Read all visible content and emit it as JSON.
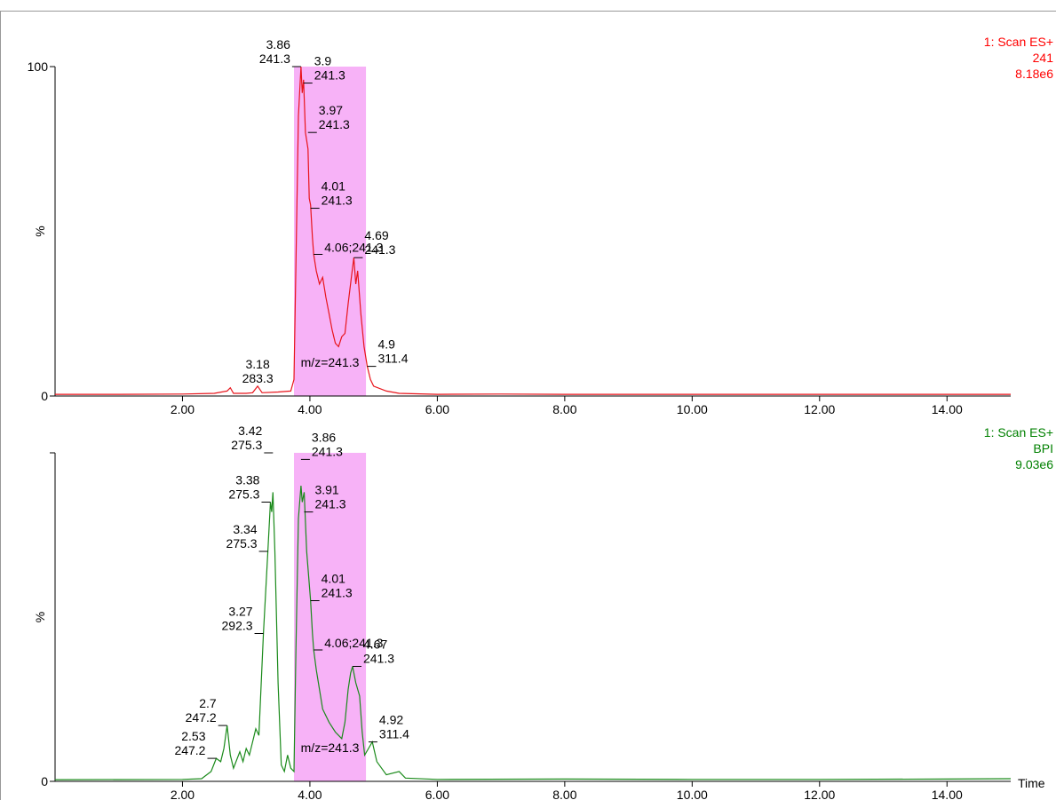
{
  "chart_data": [
    {
      "type": "line",
      "header": [
        "1: Scan ES+",
        "241",
        "8.18e6"
      ],
      "header_color": "#ff0000",
      "ylabel": "%",
      "xlim": [
        0,
        15
      ],
      "ylim": [
        0,
        100
      ],
      "xticks": [
        {
          "value": 2,
          "label": "2.00"
        },
        {
          "value": 4,
          "label": "4.00"
        },
        {
          "value": 6,
          "label": "6.00"
        },
        {
          "value": 8,
          "label": "8.00"
        },
        {
          "value": 10,
          "label": "10.00"
        },
        {
          "value": 12,
          "label": "12.00"
        },
        {
          "value": 14,
          "label": "14.00"
        }
      ],
      "yticks": [
        0,
        100
      ],
      "shaded_range": [
        3.75,
        4.88
      ],
      "shaded_color": "#f7b2f7",
      "shaded_label": "m/z=241.3",
      "x": [
        0,
        1,
        2,
        2.5,
        2.7,
        2.75,
        2.8,
        3.0,
        3.1,
        3.18,
        3.25,
        3.5,
        3.7,
        3.75,
        3.78,
        3.82,
        3.86,
        3.88,
        3.9,
        3.93,
        3.97,
        3.99,
        4.01,
        4.04,
        4.06,
        4.1,
        4.15,
        4.2,
        4.25,
        4.3,
        4.35,
        4.4,
        4.45,
        4.5,
        4.55,
        4.6,
        4.65,
        4.69,
        4.72,
        4.75,
        4.8,
        4.85,
        4.9,
        4.95,
        5.0,
        5.2,
        5.4,
        6,
        7,
        8,
        10,
        12,
        14,
        15
      ],
      "series": [
        {
          "name": "241",
          "color": "#e8141b",
          "values": [
            0.5,
            0.5,
            0.6,
            0.8,
            1.5,
            2.5,
            0.8,
            0.8,
            1,
            3,
            1,
            1.2,
            1.5,
            5,
            40,
            85,
            100,
            92,
            96,
            80,
            75,
            60,
            58,
            48,
            43,
            38,
            34,
            36,
            30,
            25,
            20,
            16,
            15,
            18,
            19,
            28,
            36,
            42,
            34,
            38,
            25,
            15,
            9,
            5,
            3,
            1.5,
            0.8,
            0.5,
            0.6,
            0.5,
            0.5,
            0.5,
            0.5,
            0.5
          ]
        }
      ],
      "annotations": [
        {
          "time": 3.86,
          "mz": 241.3,
          "y": 100,
          "anchor": "left"
        },
        {
          "time": 3.9,
          "mz": 241.3,
          "y": 95,
          "anchor": "right"
        },
        {
          "time": 3.97,
          "mz": 241.3,
          "y": 80,
          "anchor": "right"
        },
        {
          "time": 4.01,
          "mz": 241.3,
          "y": 57,
          "anchor": "right"
        },
        {
          "label": "4.06;241.3",
          "time": 4.06,
          "y": 43,
          "anchor": "right"
        },
        {
          "time": 4.69,
          "mz": 241.3,
          "y": 42,
          "anchor": "right"
        },
        {
          "time": 4.9,
          "mz": 311.4,
          "y": 9,
          "anchor": "right"
        },
        {
          "time": 3.18,
          "mz": 283.3,
          "y": 3,
          "anchor": "center"
        }
      ]
    },
    {
      "type": "line",
      "header": [
        "1: Scan ES+",
        "BPI",
        "9.03e6"
      ],
      "header_color": "#008000",
      "ylabel": "%",
      "xlabel": "Time",
      "xlim": [
        0,
        15
      ],
      "ylim": [
        0,
        100
      ],
      "xticks": [
        {
          "value": 2,
          "label": "2.00"
        },
        {
          "value": 4,
          "label": "4.00"
        },
        {
          "value": 6,
          "label": "6.00"
        },
        {
          "value": 8,
          "label": "8.00"
        },
        {
          "value": 10,
          "label": "10.00"
        },
        {
          "value": 12,
          "label": "12.00"
        },
        {
          "value": 14,
          "label": "14.00"
        }
      ],
      "yticks": [
        0
      ],
      "shaded_range": [
        3.75,
        4.88
      ],
      "shaded_color": "#f7b2f7",
      "shaded_label": "m/z=241.3",
      "x": [
        0,
        2,
        2.3,
        2.45,
        2.53,
        2.6,
        2.65,
        2.7,
        2.75,
        2.8,
        2.9,
        2.95,
        3.0,
        3.05,
        3.1,
        3.15,
        3.2,
        3.27,
        3.34,
        3.38,
        3.4,
        3.42,
        3.45,
        3.5,
        3.55,
        3.6,
        3.65,
        3.7,
        3.75,
        3.78,
        3.82,
        3.86,
        3.88,
        3.91,
        3.95,
        4.01,
        4.04,
        4.06,
        4.1,
        4.15,
        4.2,
        4.3,
        4.4,
        4.5,
        4.55,
        4.6,
        4.64,
        4.67,
        4.72,
        4.78,
        4.82,
        4.86,
        4.92,
        4.98,
        5.05,
        5.2,
        5.4,
        5.5,
        6,
        8,
        10,
        12,
        14,
        15
      ],
      "series": [
        {
          "name": "BPI",
          "color": "#1a8a1a",
          "values": [
            0.5,
            0.6,
            0.8,
            3,
            7,
            6,
            10,
            17,
            8,
            4,
            9,
            6,
            10,
            8,
            12,
            16,
            14,
            45,
            70,
            85,
            82,
            88,
            70,
            30,
            5,
            3,
            8,
            4,
            3,
            40,
            80,
            90,
            85,
            88,
            70,
            55,
            45,
            40,
            34,
            28,
            22,
            18,
            15,
            13,
            18,
            28,
            33,
            35,
            30,
            26,
            15,
            8,
            10,
            12,
            6,
            2,
            3,
            1,
            0.6,
            0.7,
            0.6,
            0.6,
            0.7,
            0.8
          ]
        }
      ],
      "annotations": [
        {
          "time": 3.42,
          "mz": 275.3,
          "y": 100,
          "anchor": "left"
        },
        {
          "time": 3.38,
          "mz": 275.3,
          "y": 85,
          "anchor": "left"
        },
        {
          "time": 3.34,
          "mz": 275.3,
          "y": 70,
          "anchor": "left"
        },
        {
          "time": 3.27,
          "mz": 292.3,
          "y": 45,
          "anchor": "left"
        },
        {
          "time": 2.7,
          "mz": 247.2,
          "y": 17,
          "anchor": "left"
        },
        {
          "time": 2.53,
          "mz": 247.2,
          "y": 7,
          "anchor": "left"
        },
        {
          "time": 3.86,
          "mz": 241.3,
          "y": 98,
          "anchor": "right"
        },
        {
          "time": 3.91,
          "mz": 241.3,
          "y": 82,
          "anchor": "right"
        },
        {
          "time": 4.01,
          "mz": 241.3,
          "y": 55,
          "anchor": "right"
        },
        {
          "label": "4.06;241.3",
          "time": 4.06,
          "y": 40,
          "anchor": "right"
        },
        {
          "time": 4.67,
          "mz": 241.3,
          "y": 35,
          "anchor": "right"
        },
        {
          "time": 4.92,
          "mz": 311.4,
          "y": 12,
          "anchor": "right"
        }
      ]
    }
  ]
}
